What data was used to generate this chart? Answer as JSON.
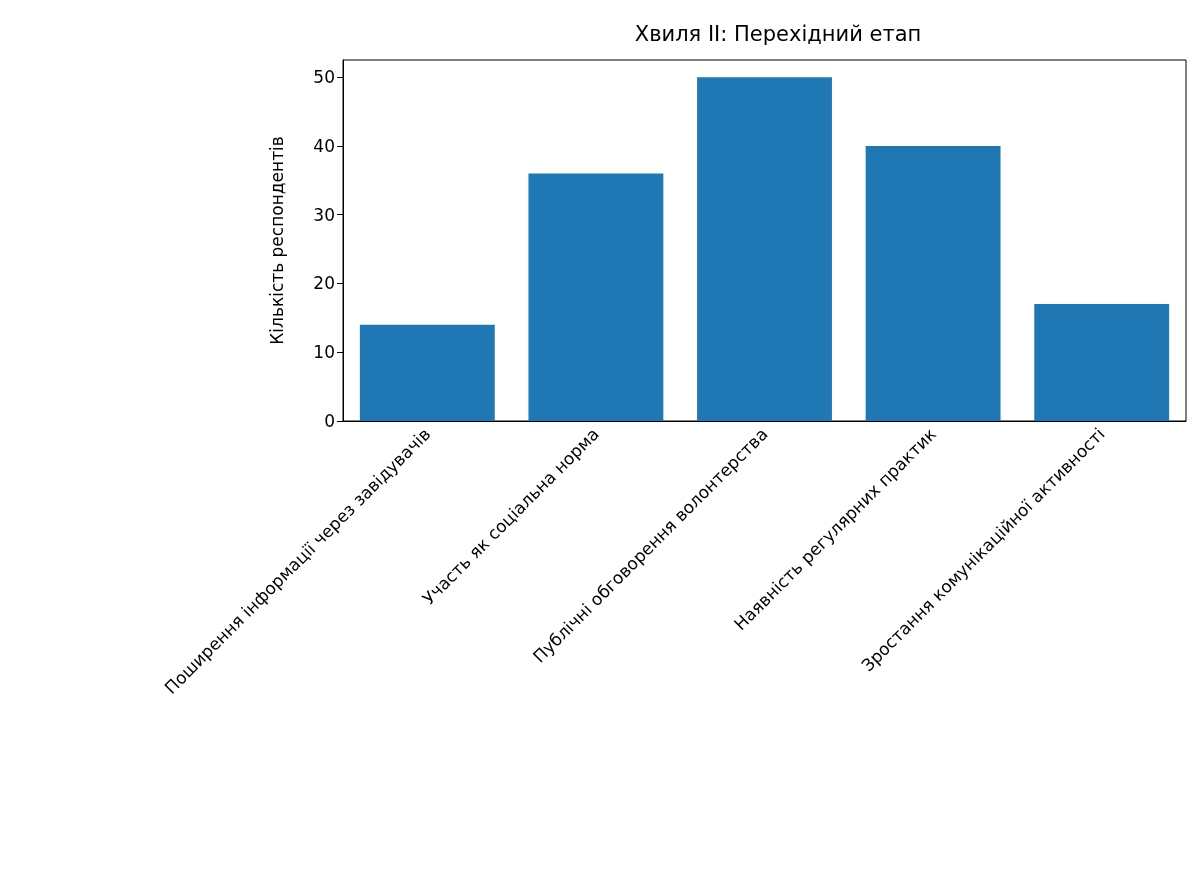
{
  "chart_data": {
    "type": "bar",
    "title": "Хвиля II: Перехідний етап",
    "ylabel": "Кількість респондентів",
    "categories": [
      "Поширення інформації через завідувачів",
      "Участь як соціальна норма",
      "Публічні обговорення волонтерства",
      "Наявність регулярних практик",
      "Зростання комунікаційної активності"
    ],
    "values": [
      14,
      36,
      50,
      40,
      17
    ],
    "color": "#1f77b4",
    "ylim": [
      0,
      52.5
    ],
    "yticks": [
      0,
      10,
      20,
      30,
      40,
      50
    ],
    "grid": false
  }
}
